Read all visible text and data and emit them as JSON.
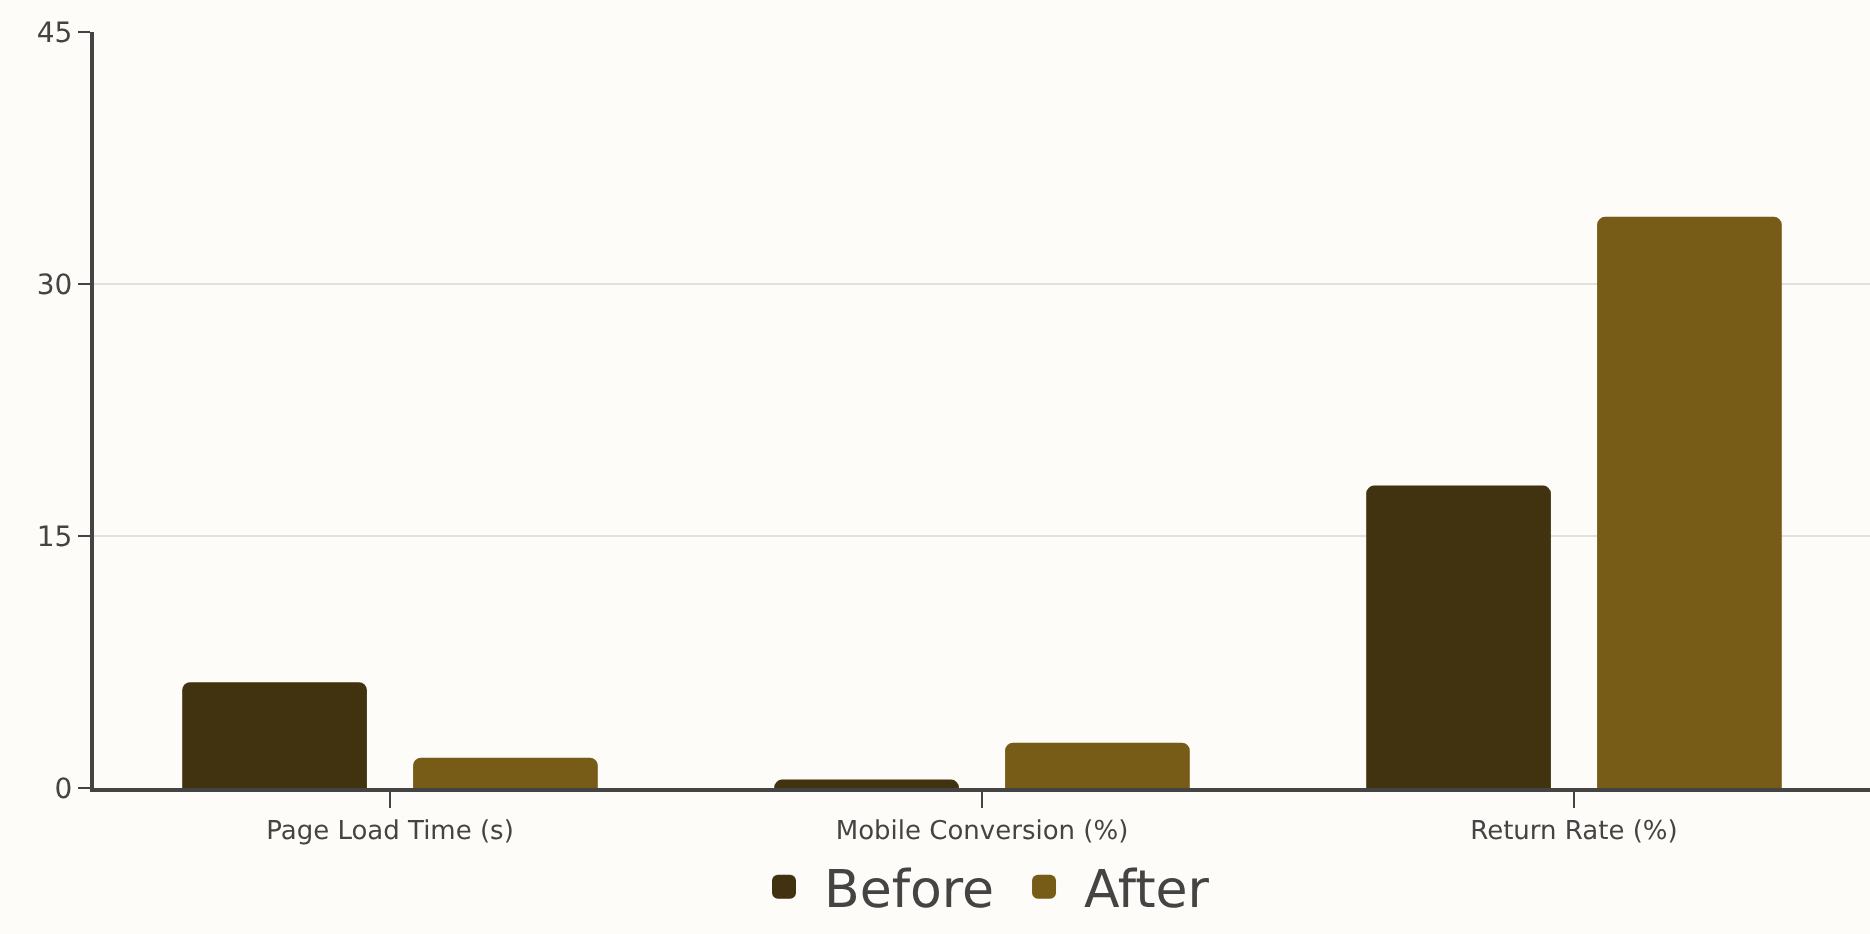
{
  "chart_data": {
    "type": "bar",
    "categories": [
      "Page Load Time (s)",
      "Mobile Conversion (%)",
      "Return Rate (%)"
    ],
    "series": [
      {
        "name": "Before",
        "color": "#41330f",
        "values": [
          6.3,
          0.5,
          18
        ]
      },
      {
        "name": "After",
        "color": "#775c18",
        "values": [
          1.8,
          2.7,
          34
        ]
      }
    ],
    "ylim": [
      0,
      45
    ],
    "yticks": [
      0,
      15,
      30,
      45
    ],
    "grid": "y",
    "legend": "bottom"
  }
}
